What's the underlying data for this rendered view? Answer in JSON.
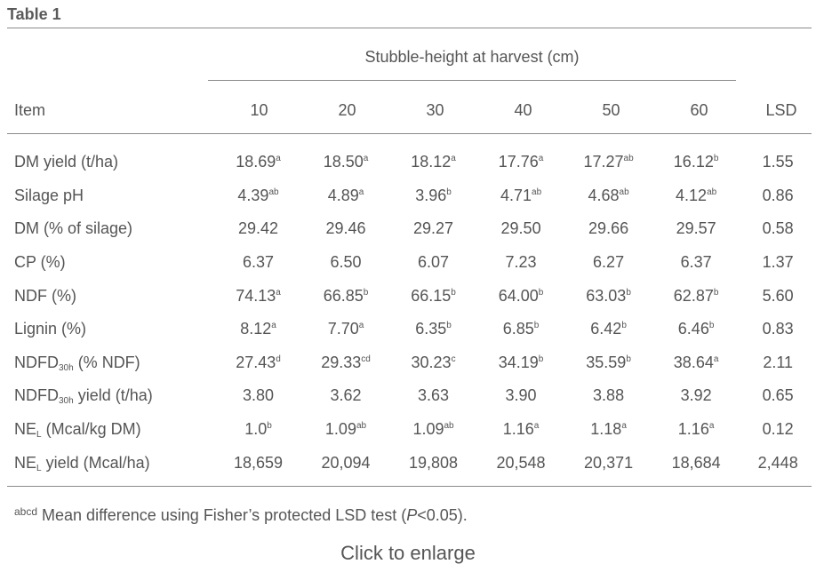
{
  "title": "Table 1",
  "group_header": "Stubble-height at harvest (cm)",
  "columns": {
    "item": "Item",
    "heights": [
      "10",
      "20",
      "30",
      "40",
      "50",
      "60"
    ],
    "lsd": "LSD"
  },
  "rows": [
    {
      "label": "DM yield (t/ha)",
      "label_sub": "",
      "label_rest": "",
      "cells": [
        {
          "v": "18.69",
          "s": "a"
        },
        {
          "v": "18.50",
          "s": "a"
        },
        {
          "v": "18.12",
          "s": "a"
        },
        {
          "v": "17.76",
          "s": "a"
        },
        {
          "v": "17.27",
          "s": "ab"
        },
        {
          "v": "16.12",
          "s": "b"
        }
      ],
      "lsd": "1.55"
    },
    {
      "label": "Silage pH",
      "label_sub": "",
      "label_rest": "",
      "cells": [
        {
          "v": "4.39",
          "s": "ab"
        },
        {
          "v": "4.89",
          "s": "a"
        },
        {
          "v": "3.96",
          "s": "b"
        },
        {
          "v": "4.71",
          "s": "ab"
        },
        {
          "v": "4.68",
          "s": "ab"
        },
        {
          "v": "4.12",
          "s": "ab"
        }
      ],
      "lsd": "0.86"
    },
    {
      "label": "DM (% of silage)",
      "label_sub": "",
      "label_rest": "",
      "cells": [
        {
          "v": "29.42",
          "s": ""
        },
        {
          "v": "29.46",
          "s": ""
        },
        {
          "v": "29.27",
          "s": ""
        },
        {
          "v": "29.50",
          "s": ""
        },
        {
          "v": "29.66",
          "s": ""
        },
        {
          "v": "29.57",
          "s": ""
        }
      ],
      "lsd": "0.58"
    },
    {
      "label": "CP (%)",
      "label_sub": "",
      "label_rest": "",
      "cells": [
        {
          "v": "6.37",
          "s": ""
        },
        {
          "v": "6.50",
          "s": ""
        },
        {
          "v": "6.07",
          "s": ""
        },
        {
          "v": "7.23",
          "s": ""
        },
        {
          "v": "6.27",
          "s": ""
        },
        {
          "v": "6.37",
          "s": ""
        }
      ],
      "lsd": "1.37"
    },
    {
      "label": "NDF (%)",
      "label_sub": "",
      "label_rest": "",
      "cells": [
        {
          "v": "74.13",
          "s": "a"
        },
        {
          "v": "66.85",
          "s": "b"
        },
        {
          "v": "66.15",
          "s": "b"
        },
        {
          "v": "64.00",
          "s": "b"
        },
        {
          "v": "63.03",
          "s": "b"
        },
        {
          "v": "62.87",
          "s": "b"
        }
      ],
      "lsd": "5.60"
    },
    {
      "label": "Lignin (%)",
      "label_sub": "",
      "label_rest": "",
      "cells": [
        {
          "v": "8.12",
          "s": "a"
        },
        {
          "v": "7.70",
          "s": "a"
        },
        {
          "v": "6.35",
          "s": "b"
        },
        {
          "v": "6.85",
          "s": "b"
        },
        {
          "v": "6.42",
          "s": "b"
        },
        {
          "v": "6.46",
          "s": "b"
        }
      ],
      "lsd": "0.83"
    },
    {
      "label": "NDFD",
      "label_sub": "30h",
      "label_rest": " (% NDF)",
      "cells": [
        {
          "v": "27.43",
          "s": "d"
        },
        {
          "v": "29.33",
          "s": "cd"
        },
        {
          "v": "30.23",
          "s": "c"
        },
        {
          "v": "34.19",
          "s": "b"
        },
        {
          "v": "35.59",
          "s": "b"
        },
        {
          "v": "38.64",
          "s": "a"
        }
      ],
      "lsd": "2.11"
    },
    {
      "label": "NDFD",
      "label_sub": "30h",
      "label_rest": " yield (t/ha)",
      "cells": [
        {
          "v": "3.80",
          "s": ""
        },
        {
          "v": "3.62",
          "s": ""
        },
        {
          "v": "3.63",
          "s": ""
        },
        {
          "v": "3.90",
          "s": ""
        },
        {
          "v": "3.88",
          "s": ""
        },
        {
          "v": "3.92",
          "s": ""
        }
      ],
      "lsd": "0.65"
    },
    {
      "label": "NE",
      "label_sub": "L",
      "label_rest": " (Mcal/kg DM)",
      "cells": [
        {
          "v": "1.0",
          "s": "b"
        },
        {
          "v": "1.09",
          "s": "ab"
        },
        {
          "v": "1.09",
          "s": "ab"
        },
        {
          "v": "1.16",
          "s": "a"
        },
        {
          "v": "1.18",
          "s": "a"
        },
        {
          "v": "1.16",
          "s": "a"
        }
      ],
      "lsd": "0.12"
    },
    {
      "label": "NE",
      "label_sub": "L",
      "label_rest": " yield (Mcal/ha)",
      "cells": [
        {
          "v": "18,659",
          "s": ""
        },
        {
          "v": "20,094",
          "s": ""
        },
        {
          "v": "19,808",
          "s": ""
        },
        {
          "v": "20,548",
          "s": ""
        },
        {
          "v": "20,371",
          "s": ""
        },
        {
          "v": "18,684",
          "s": ""
        }
      ],
      "lsd": "2,448"
    }
  ],
  "footnote": {
    "marker": "abcd",
    "text_before": " Mean difference using Fisher’s protected LSD test (",
    "italic": "P",
    "text_after": "<0.05)."
  },
  "enlarge_link": "Click to enlarge"
}
